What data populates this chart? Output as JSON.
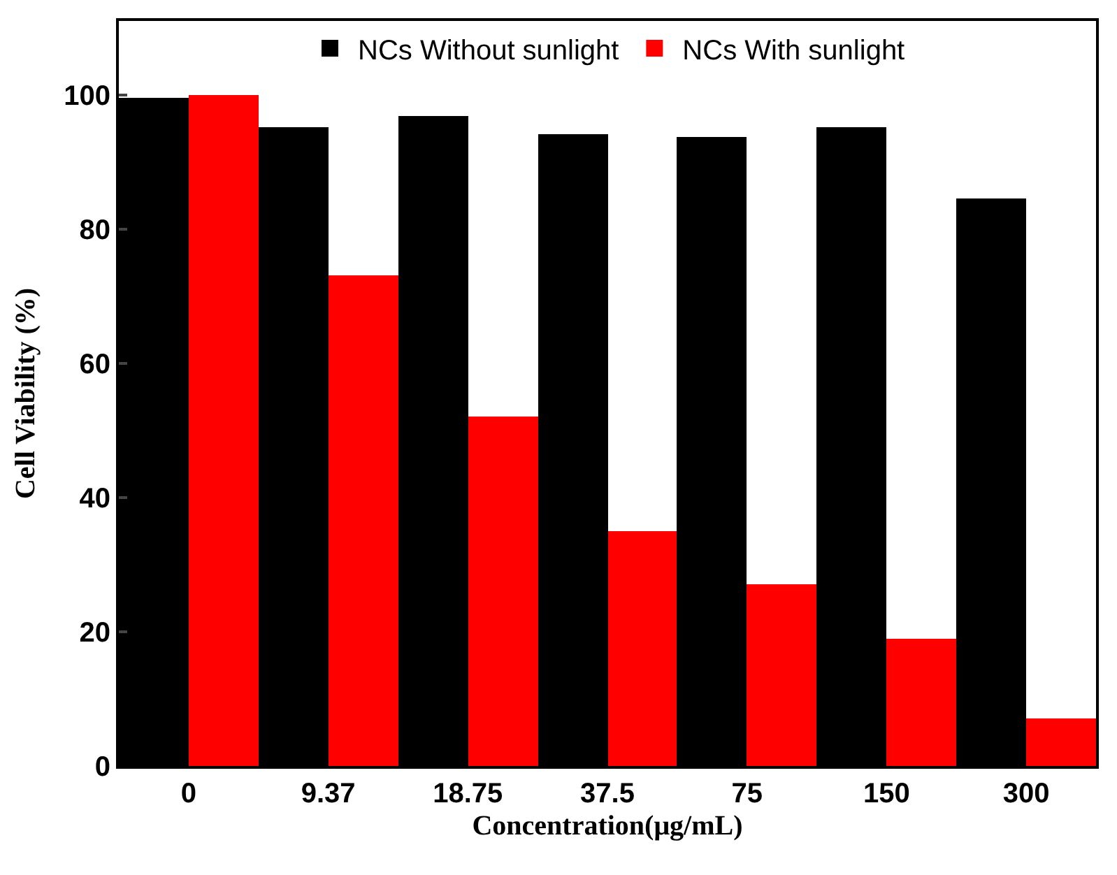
{
  "chart_data": {
    "type": "bar",
    "xlabel": "Concentration(μg/mL)",
    "ylabel": "Cell Viability (%)",
    "categories": [
      "0",
      "9.37",
      "18.75",
      "37.5",
      "75",
      "150",
      "300"
    ],
    "series": [
      {
        "name": "NCs Without sunlight",
        "color": "#000000",
        "values": [
          99.6,
          95.2,
          96.9,
          94.2,
          93.7,
          95.2,
          84.6
        ]
      },
      {
        "name": "NCs With sunlight",
        "color": "#ff0000",
        "values": [
          100,
          73,
          52,
          35,
          27,
          19,
          7
        ]
      }
    ],
    "ylim": [
      0,
      111
    ],
    "yticks": [
      0,
      20,
      40,
      60,
      80,
      100
    ],
    "legend": "top"
  }
}
